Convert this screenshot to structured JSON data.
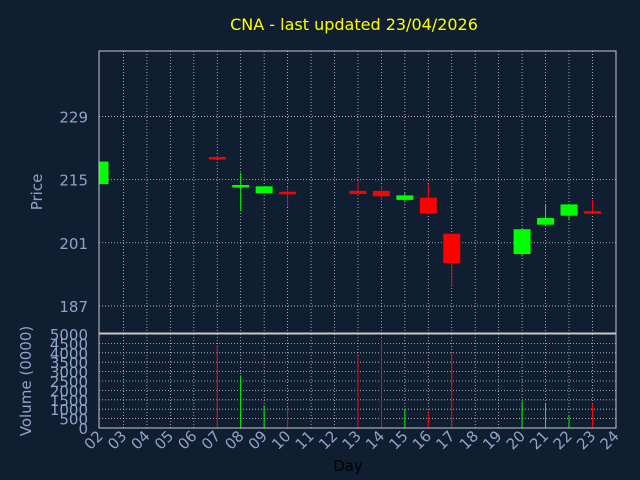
{
  "title": "CNA - last updated 23/04/2026",
  "colors": {
    "background": "#0f1e30",
    "title": "#ffff00",
    "axis_text": "#8fa4c8",
    "frame": "#c8c8c8",
    "grid": "#c8c8c8",
    "up": "#00ff00",
    "down": "#ff0000"
  },
  "chart_data": {
    "type": "candlestick",
    "xlabel": "Day",
    "price_ylabel": "Price",
    "volume_ylabel": "Volume (0000)",
    "x_ticks": [
      "02",
      "03",
      "04",
      "05",
      "06",
      "07",
      "08",
      "09",
      "10",
      "11",
      "12",
      "13",
      "14",
      "15",
      "16",
      "17",
      "18",
      "19",
      "20",
      "21",
      "22",
      "23",
      "24"
    ],
    "price_ticks": [
      187,
      201,
      215,
      229
    ],
    "price_range": [
      181,
      243.5
    ],
    "volume_ticks": [
      0,
      500,
      1000,
      1500,
      2000,
      2500,
      3000,
      3500,
      4000,
      4500,
      5000
    ],
    "volume_range": [
      0,
      5000
    ],
    "candles": [
      {
        "day": "02",
        "open": 214.0,
        "high": 219.0,
        "low": 214.0,
        "close": 219.0,
        "volume": 0
      },
      {
        "day": "07",
        "open": 220.0,
        "high": 220.3,
        "low": 219.5,
        "close": 219.7,
        "volume": 4400
      },
      {
        "day": "08",
        "open": 213.5,
        "high": 216.5,
        "low": 208.0,
        "close": 213.8,
        "volume": 2800
      },
      {
        "day": "09",
        "open": 212.0,
        "high": 213.5,
        "low": 212.0,
        "close": 213.5,
        "volume": 1200
      },
      {
        "day": "10",
        "open": 212.3,
        "high": 213.3,
        "low": 209.0,
        "close": 211.8,
        "volume": 1100
      },
      {
        "day": "13",
        "open": 212.5,
        "high": 214.5,
        "low": 211.5,
        "close": 211.8,
        "volume": 3800
      },
      {
        "day": "14",
        "open": 212.5,
        "high": 213.5,
        "low": 210.5,
        "close": 211.3,
        "volume": 4700
      },
      {
        "day": "15",
        "open": 210.5,
        "high": 212.0,
        "low": 210.0,
        "close": 211.5,
        "volume": 1000
      },
      {
        "day": "16",
        "open": 211.0,
        "high": 214.0,
        "low": 207.5,
        "close": 207.5,
        "volume": 900
      },
      {
        "day": "17",
        "open": 203.0,
        "high": 203.0,
        "low": 191.5,
        "close": 196.5,
        "volume": 4000
      },
      {
        "day": "20",
        "open": 198.5,
        "high": 204.0,
        "low": 198.0,
        "close": 204.0,
        "volume": 1400
      },
      {
        "day": "21",
        "open": 205.0,
        "high": 209.5,
        "low": 205.0,
        "close": 206.5,
        "volume": 1300
      },
      {
        "day": "22",
        "open": 207.0,
        "high": 209.5,
        "low": 206.0,
        "close": 209.5,
        "volume": 700
      },
      {
        "day": "23",
        "open": 208.0,
        "high": 210.5,
        "low": 207.5,
        "close": 207.8,
        "volume": 1300
      }
    ]
  }
}
